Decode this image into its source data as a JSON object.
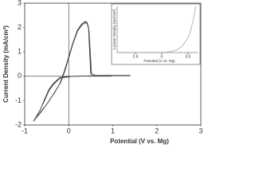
{
  "chart_data": [
    {
      "type": "line",
      "x_label": "Potential (V vs. Mg)",
      "y_label": "Current Density (mA/cm²)",
      "xlim": [
        -1,
        3
      ],
      "ylim": [
        -2,
        3
      ],
      "xticks": [
        -1,
        0,
        1,
        2,
        3
      ],
      "yticks": [
        -2,
        -1,
        0,
        1,
        2,
        3
      ],
      "series": [
        {
          "color": "#222",
          "x": [
            1.4,
            0.6,
            0.1,
            -0.2,
            -0.35,
            -0.45,
            -0.55,
            -0.65,
            -0.8,
            -0.65,
            -0.5,
            -0.35,
            -0.2,
            -0.1,
            0,
            0.1,
            0.2,
            0.3,
            0.38,
            0.42,
            0.45,
            0.5,
            0.6,
            1.0,
            1.4
          ],
          "values": [
            0.02,
            0.02,
            0,
            -0.05,
            -0.3,
            -0.55,
            -0.95,
            -1.4,
            -1.85,
            -1.5,
            -1.15,
            -0.75,
            -0.3,
            0.2,
            0.8,
            1.4,
            1.9,
            2.15,
            2.25,
            2.2,
            2.0,
            0.1,
            0.03,
            0.03,
            0.03
          ]
        },
        {
          "color": "#555",
          "x": [
            1.4,
            0.6,
            0.1,
            -0.2,
            -0.35,
            -0.45,
            -0.55,
            -0.68,
            -0.78,
            -0.62,
            -0.48,
            -0.33,
            -0.18,
            -0.08,
            0,
            0.1,
            0.2,
            0.3,
            0.38,
            0.42,
            0.46,
            0.52,
            0.6,
            1.0,
            1.4
          ],
          "values": [
            0.02,
            0.02,
            0,
            -0.08,
            -0.35,
            -0.6,
            -1.0,
            -1.5,
            -1.8,
            -1.45,
            -1.1,
            -0.7,
            -0.25,
            0.25,
            0.75,
            1.35,
            1.85,
            2.1,
            2.2,
            2.15,
            1.9,
            0.1,
            0.03,
            0.03,
            0.03
          ]
        }
      ]
    },
    {
      "type": "line",
      "x_label": "Potential (V vs. Mg)",
      "y_label": "Current Density (mA/cm²)",
      "xlim": [
        2.15,
        3.7
      ],
      "ylim": [
        0,
        3
      ],
      "xticks": [
        2.5,
        3,
        3.5
      ],
      "series": [
        {
          "color": "#999",
          "x": [
            2.15,
            2.5,
            2.8,
            3.0,
            3.1,
            3.2,
            3.3,
            3.4,
            3.5,
            3.55,
            3.6,
            3.65
          ],
          "values": [
            0,
            0,
            0,
            0.01,
            0.03,
            0.08,
            0.2,
            0.45,
            0.95,
            1.4,
            2.1,
            3.0
          ]
        }
      ]
    }
  ]
}
